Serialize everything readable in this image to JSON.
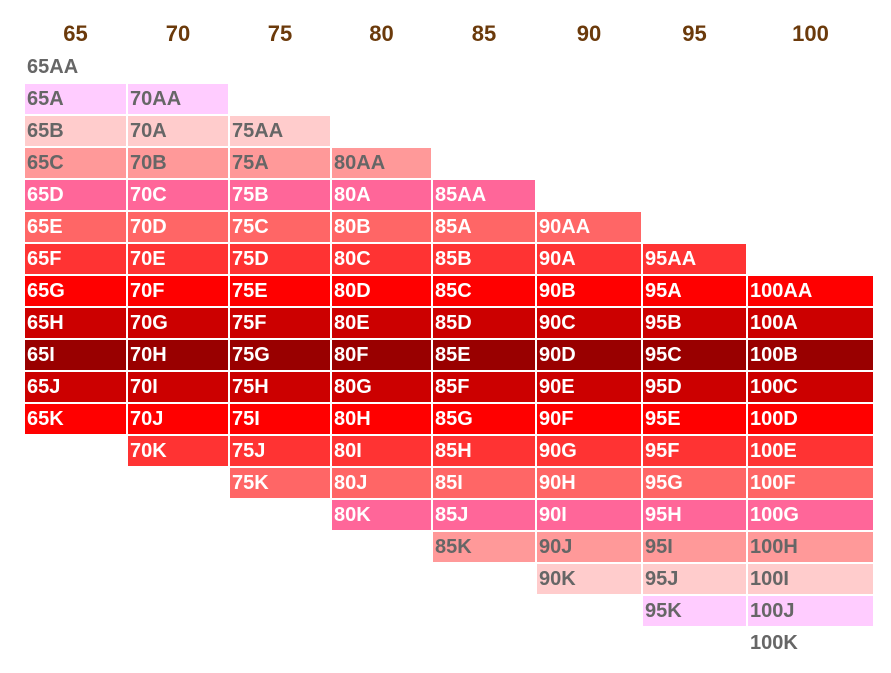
{
  "columns": [
    "65",
    "70",
    "75",
    "80",
    "85",
    "90",
    "95",
    "100"
  ],
  "cup_sequence": [
    "AA",
    "A",
    "B",
    "C",
    "D",
    "E",
    "F",
    "G",
    "H",
    "I",
    "J",
    "K"
  ],
  "shade_sequence": [
    "none",
    "lilac",
    "blush",
    "salmon",
    "pink",
    "coral",
    "light-red",
    "red",
    "dark-red",
    "maroon",
    "dark-red",
    "red",
    "light-red",
    "coral",
    "pink",
    "salmon",
    "blush",
    "lilac",
    "none"
  ],
  "colors": {
    "none": {
      "bg": "#ffffff",
      "text": "#666666"
    },
    "lilac": {
      "bg": "#ffccff",
      "text": "#666666"
    },
    "blush": {
      "bg": "#ffcccc",
      "text": "#666666"
    },
    "salmon": {
      "bg": "#ff9999",
      "text": "#666666"
    },
    "pink": {
      "bg": "#ff6699",
      "text": "#ffffff"
    },
    "coral": {
      "bg": "#ff6666",
      "text": "#ffffff"
    },
    "light-red": {
      "bg": "#ff3333",
      "text": "#ffffff"
    },
    "red": {
      "bg": "#ff0000",
      "text": "#ffffff"
    },
    "dark-red": {
      "bg": "#cc0000",
      "text": "#ffffff"
    },
    "maroon": {
      "bg": "#990000",
      "text": "#ffffff"
    }
  },
  "header_color": "#6b3a0b",
  "table": [
    [
      "65AA",
      "",
      "",
      "",
      "",
      "",
      "",
      ""
    ],
    [
      "65A",
      "70AA",
      "",
      "",
      "",
      "",
      "",
      ""
    ],
    [
      "65B",
      "70A",
      "75AA",
      "",
      "",
      "",
      "",
      ""
    ],
    [
      "65C",
      "70B",
      "75A",
      "80AA",
      "",
      "",
      "",
      ""
    ],
    [
      "65D",
      "70C",
      "75B",
      "80A",
      "85AA",
      "",
      "",
      ""
    ],
    [
      "65E",
      "70D",
      "75C",
      "80B",
      "85A",
      "90AA",
      "",
      ""
    ],
    [
      "65F",
      "70E",
      "75D",
      "80C",
      "85B",
      "90A",
      "95AA",
      ""
    ],
    [
      "65G",
      "70F",
      "75E",
      "80D",
      "85C",
      "90B",
      "95A",
      "100AA"
    ],
    [
      "65H",
      "70G",
      "75F",
      "80E",
      "85D",
      "90C",
      "95B",
      "100A"
    ],
    [
      "65I",
      "70H",
      "75G",
      "80F",
      "85E",
      "90D",
      "95C",
      "100B"
    ],
    [
      "65J",
      "70I",
      "75H",
      "80G",
      "85F",
      "90E",
      "95D",
      "100C"
    ],
    [
      "65K",
      "70J",
      "75I",
      "80H",
      "85G",
      "90F",
      "95E",
      "100D"
    ],
    [
      "",
      "70K",
      "75J",
      "80I",
      "85H",
      "90G",
      "95F",
      "100E"
    ],
    [
      "",
      "",
      "75K",
      "80J",
      "85I",
      "90H",
      "95G",
      "100F"
    ],
    [
      "",
      "",
      "",
      "80K",
      "85J",
      "90I",
      "95H",
      "100G"
    ],
    [
      "",
      "",
      "",
      "",
      "85K",
      "90J",
      "95I",
      "100H"
    ],
    [
      "",
      "",
      "",
      "",
      "",
      "90K",
      "95J",
      "100I"
    ],
    [
      "",
      "",
      "",
      "",
      "",
      "",
      "95K",
      "100J"
    ],
    [
      "",
      "",
      "",
      "",
      "",
      "",
      "",
      "100K"
    ]
  ]
}
